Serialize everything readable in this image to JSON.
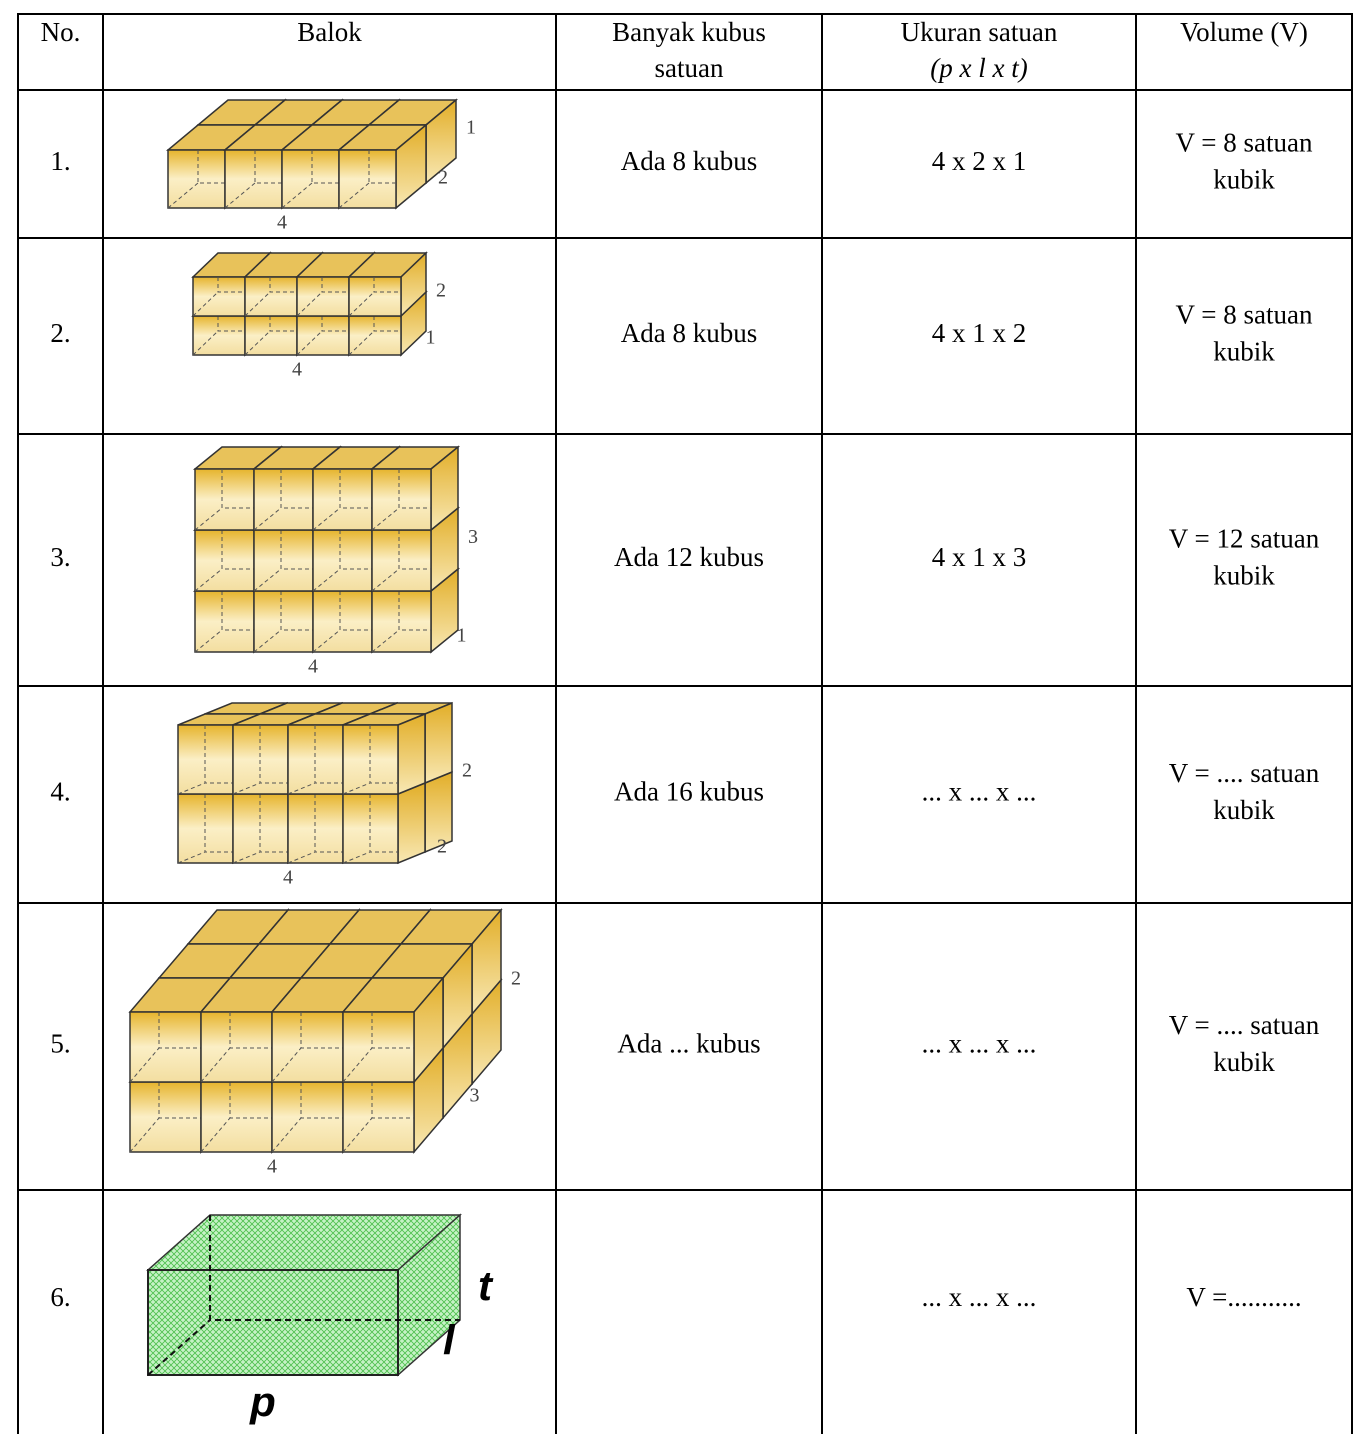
{
  "table": {
    "header": [
      [
        "No."
      ],
      [
        "Balok"
      ],
      [
        "Banyak kubus",
        "satuan"
      ],
      [
        "Ukuran satuan",
        "(p x l x t)"
      ],
      [
        "Volume (V)"
      ]
    ],
    "rows": [
      {
        "no": "1.",
        "balok": {
          "p": 4,
          "l": 2,
          "t": 1
        },
        "banyak": "Ada 8 kubus",
        "ukuran": "4 x 2 x 1",
        "volume": [
          "V = 8 satuan",
          "kubik"
        ]
      },
      {
        "no": "2.",
        "balok": {
          "p": 4,
          "l": 1,
          "t": 2
        },
        "banyak": "Ada 8 kubus",
        "ukuran": "4 x 1 x 2",
        "volume": [
          "V = 8 satuan",
          "kubik"
        ]
      },
      {
        "no": "3.",
        "balok": {
          "p": 4,
          "l": 1,
          "t": 3
        },
        "banyak": "Ada 12 kubus",
        "ukuran": "4 x 1 x 3",
        "volume": [
          "V = 12 satuan",
          "kubik"
        ]
      },
      {
        "no": "4.",
        "balok": {
          "p": 4,
          "l": 2,
          "t": 2
        },
        "banyak": "Ada 16 kubus",
        "ukuran": "... x ... x ...",
        "volume": [
          "V = .... satuan",
          "kubik"
        ]
      },
      {
        "no": "5.",
        "balok": {
          "p": 4,
          "l": 3,
          "t": 2
        },
        "banyak": "Ada ... kubus",
        "ukuran": "... x ... x ...",
        "volume": [
          "V = .... satuan",
          "kubik"
        ]
      },
      {
        "no": "6.",
        "balok": {
          "p": "p",
          "l": "l",
          "t": "t"
        },
        "ukuran": "... x ... x ...",
        "volume": [
          "V =..........."
        ]
      }
    ]
  }
}
